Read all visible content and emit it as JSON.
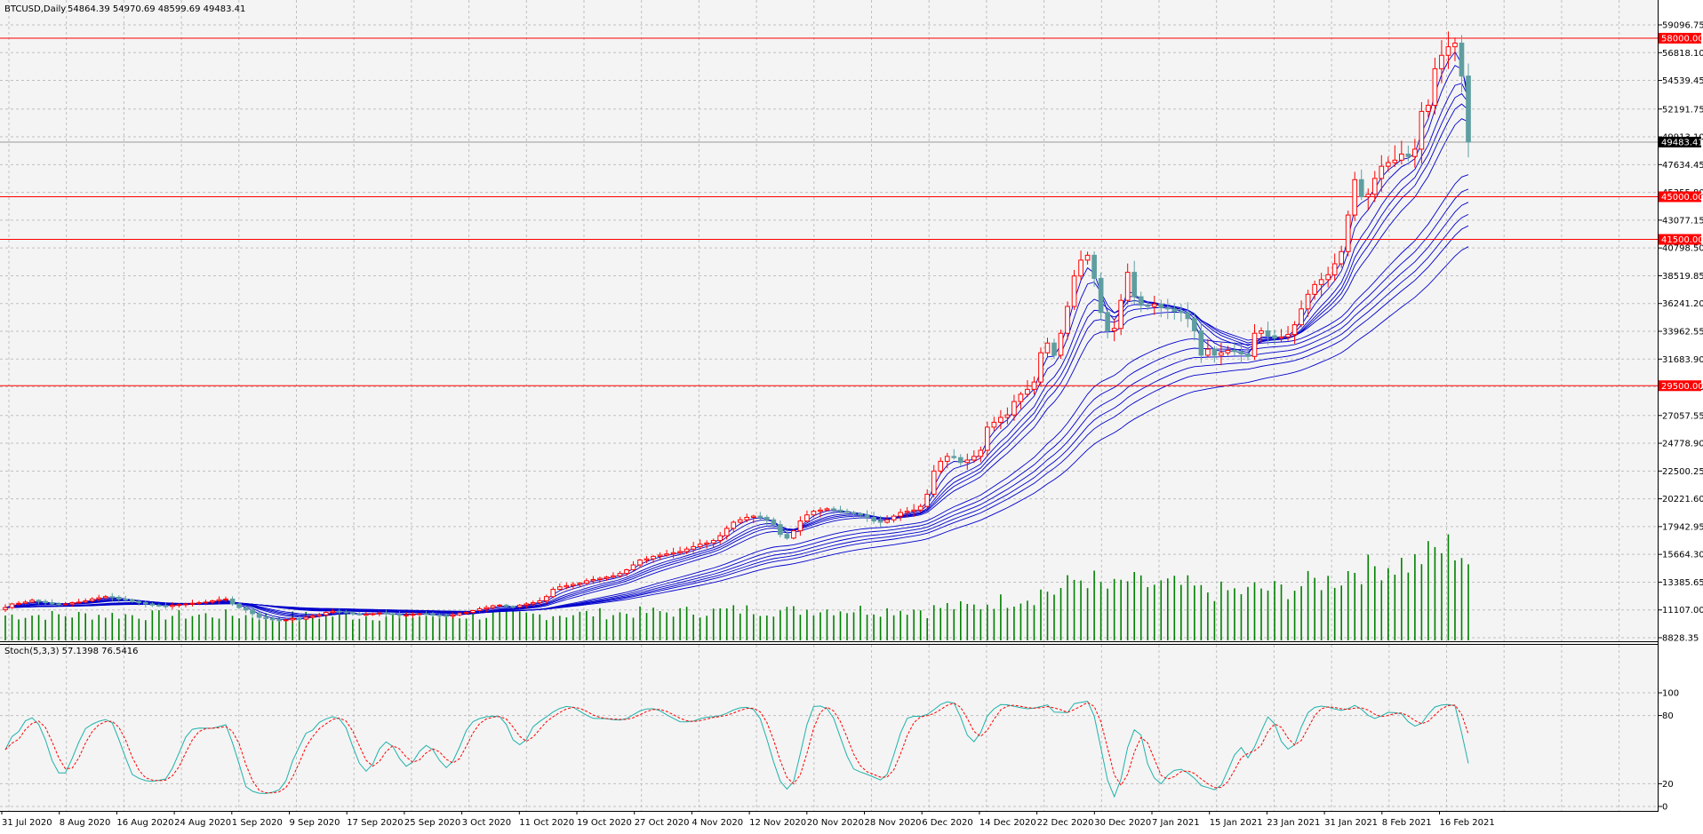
{
  "chart_header": {
    "symbol_label": "BTCUSD,Daily",
    "ohlc_label": "54864.39 54970.69 48599.69 49483.41"
  },
  "stoch_header": {
    "label": "Stoch(5,3,3) 57.1398 76.5416"
  },
  "colors": {
    "background": "#f4f4f4",
    "grid": "#c0c0c0",
    "bull_candle": "#ff0000",
    "bear_candle": "#5f9ea0",
    "ma_lines": "#0000cc",
    "volume": "#008000",
    "hline": "#ff0000",
    "stoch_main": "#20b2aa",
    "stoch_signal": "#ff0000"
  },
  "chart_data": {
    "type": "candlestick",
    "title": "BTCUSD,Daily",
    "y_axis_ticks": [
      "59096.75",
      "56818.10",
      "54539.45",
      "52191.75",
      "49913.10",
      "47634.45",
      "45355.80",
      "43077.15",
      "40798.50",
      "38519.85",
      "36241.20",
      "33962.55",
      "31683.90",
      "29405.25",
      "27057.55",
      "24778.90",
      "22500.25",
      "20221.60",
      "17942.95",
      "15664.30",
      "13385.65",
      "11107.00",
      "8828.35"
    ],
    "ylim": [
      8828.35,
      59096.75
    ],
    "x_axis_labels": [
      "31 Jul 2020",
      "8 Aug 2020",
      "16 Aug 2020",
      "24 Aug 2020",
      "1 Sep 2020",
      "9 Sep 2020",
      "17 Sep 2020",
      "25 Sep 2020",
      "3 Oct 2020",
      "11 Oct 2020",
      "19 Oct 2020",
      "27 Oct 2020",
      "4 Nov 2020",
      "12 Nov 2020",
      "20 Nov 2020",
      "28 Nov 2020",
      "6 Dec 2020",
      "14 Dec 2020",
      "22 Dec 2020",
      "30 Dec 2020",
      "7 Jan 2021",
      "15 Jan 2021",
      "23 Jan 2021",
      "31 Jan 2021",
      "8 Feb 2021",
      "16 Feb 2021"
    ],
    "horizontal_levels": [
      {
        "price": 58000.0,
        "label": "58000.00"
      },
      {
        "price": 45000.0,
        "label": "45000.00"
      },
      {
        "price": 41500.0,
        "label": "41500.00"
      },
      {
        "price": 29500.0,
        "label": "29500.00"
      }
    ],
    "current_price": {
      "price": 49483.41,
      "label": "49483.41"
    },
    "close_series": [
      11300,
      11600,
      11650,
      11750,
      11900,
      11800,
      11700,
      11600,
      11550,
      11600,
      11700,
      11750,
      11850,
      12000,
      12100,
      12200,
      12150,
      12000,
      11950,
      11800,
      11700,
      11600,
      11500,
      11450,
      11400,
      11500,
      11550,
      11600,
      11650,
      11700,
      11750,
      11850,
      11950,
      12000,
      11600,
      11300,
      11100,
      10800,
      10500,
      10400,
      10300,
      10250,
      10300,
      10400,
      10350,
      10500,
      10600,
      10700,
      10900,
      11000,
      10950,
      10900,
      10800,
      10700,
      10750,
      10800,
      10850,
      10800,
      10750,
      10700,
      10700,
      10750,
      10800,
      10750,
      10700,
      10650,
      10600,
      10700,
      10850,
      10900,
      11050,
      11200,
      11300,
      11450,
      11500,
      11400,
      11350,
      11500,
      11600,
      11700,
      11850,
      12200,
      12800,
      13000,
      13100,
      13200,
      13300,
      13500,
      13600,
      13700,
      13800,
      13900,
      14100,
      14400,
      14800,
      15200,
      15300,
      15500,
      15600,
      15700,
      15800,
      15900,
      16100,
      16300,
      16500,
      16600,
      16800,
      17200,
      17800,
      18300,
      18500,
      18700,
      18800,
      18700,
      18500,
      18100,
      17300,
      17000,
      17600,
      18400,
      18900,
      19200,
      19300,
      19400,
      19300,
      19200,
      19100,
      19000,
      18900,
      18700,
      18400,
      18300,
      18500,
      18800,
      19100,
      19200,
      19300,
      19600,
      20600,
      22500,
      23300,
      23700,
      23600,
      23200,
      23400,
      23700,
      24200,
      26100,
      26500,
      26900,
      27100,
      28200,
      28800,
      29200,
      29800,
      32200,
      33000,
      32000,
      33800,
      36000,
      38500,
      39800,
      40200,
      38300,
      35500,
      34000,
      34200,
      36500,
      38800,
      36800,
      36100,
      36000,
      36200,
      35900,
      35800,
      35600,
      35500,
      35000,
      34000,
      32000,
      32500,
      32000,
      32200,
      32400,
      32300,
      32100,
      31900,
      33800,
      34000,
      33600,
      33400,
      33500,
      33700,
      34500,
      35800,
      37000,
      37800,
      38200,
      38600,
      39500,
      40500,
      43500,
      46400,
      45000,
      45200,
      46500,
      47500,
      47800,
      48000,
      48500,
      48300,
      48900,
      52000,
      52500,
      55500,
      56600,
      57300,
      57600,
      54900,
      49483.41
    ],
    "series": [
      {
        "name": "Stoch(5,3,3) main",
        "last_value": 57.1398
      },
      {
        "name": "Stoch(5,3,3) signal",
        "last_value": 76.5416
      }
    ],
    "stoch_ylim": [
      0,
      100
    ],
    "stoch_ticks": [
      "100",
      "80",
      "20",
      "0"
    ]
  }
}
